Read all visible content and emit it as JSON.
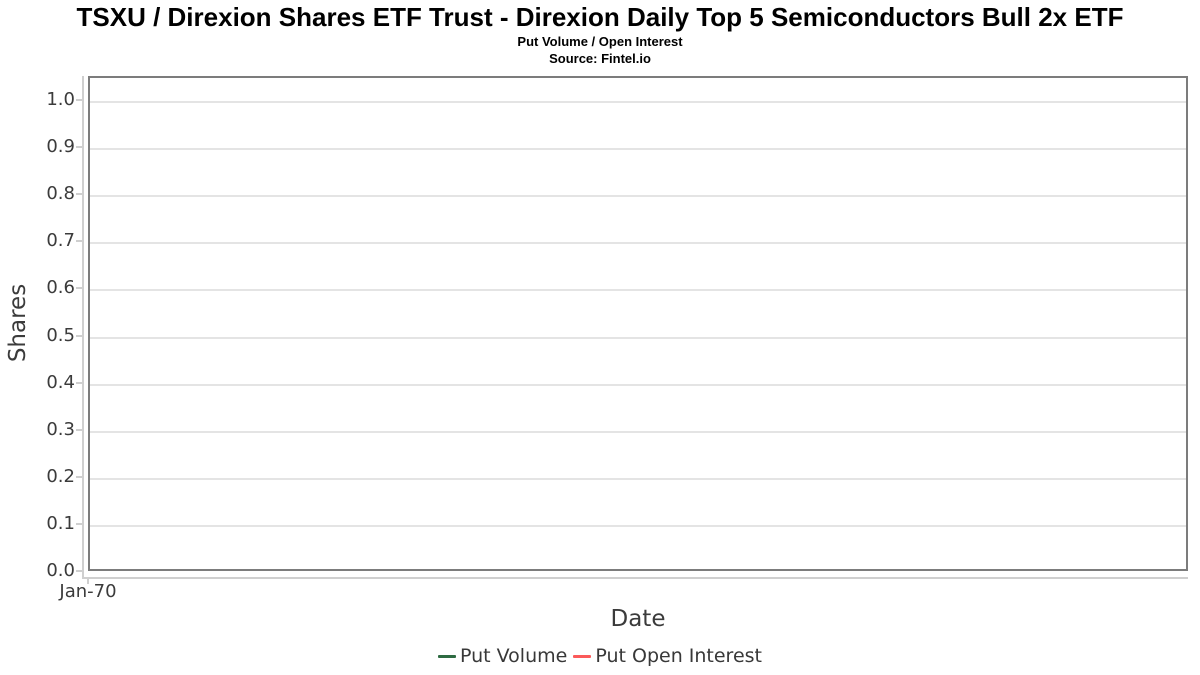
{
  "header": {
    "title": "TSXU / Direxion Shares ETF Trust - Direxion Daily Top 5 Semiconductors Bull 2x ETF",
    "subtitle": "Put Volume / Open Interest",
    "source": "Source: Fintel.io"
  },
  "chart_data": {
    "type": "line",
    "title": "TSXU / Direxion Shares ETF Trust - Direxion Daily Top 5 Semiconductors Bull 2x ETF",
    "subtitle": "Put Volume / Open Interest",
    "source": "Source: Fintel.io",
    "xlabel": "Date",
    "ylabel": "Shares",
    "x_tick_labels": [
      "Jan-70"
    ],
    "y_tick_labels": [
      "0.0",
      "0.1",
      "0.2",
      "0.3",
      "0.4",
      "0.5",
      "0.6",
      "0.7",
      "0.8",
      "0.9",
      "1.0"
    ],
    "ylim": [
      0.0,
      1.05
    ],
    "grid": true,
    "legend_position": "bottom-center",
    "series": [
      {
        "name": "Put Volume",
        "color": "#2e6b42",
        "x": [],
        "values": []
      },
      {
        "name": "Put Open Interest",
        "color": "#fb5a5a",
        "x": [],
        "values": []
      }
    ]
  },
  "colors": {
    "plot_border": "#7c7c7c",
    "axis_line": "#cfcfcf",
    "gridline": "#e4e4e4",
    "tick_label_text": "#3b3b3b",
    "legend_text": "#383838",
    "title_text": "#000000",
    "background": "#ffffff"
  }
}
